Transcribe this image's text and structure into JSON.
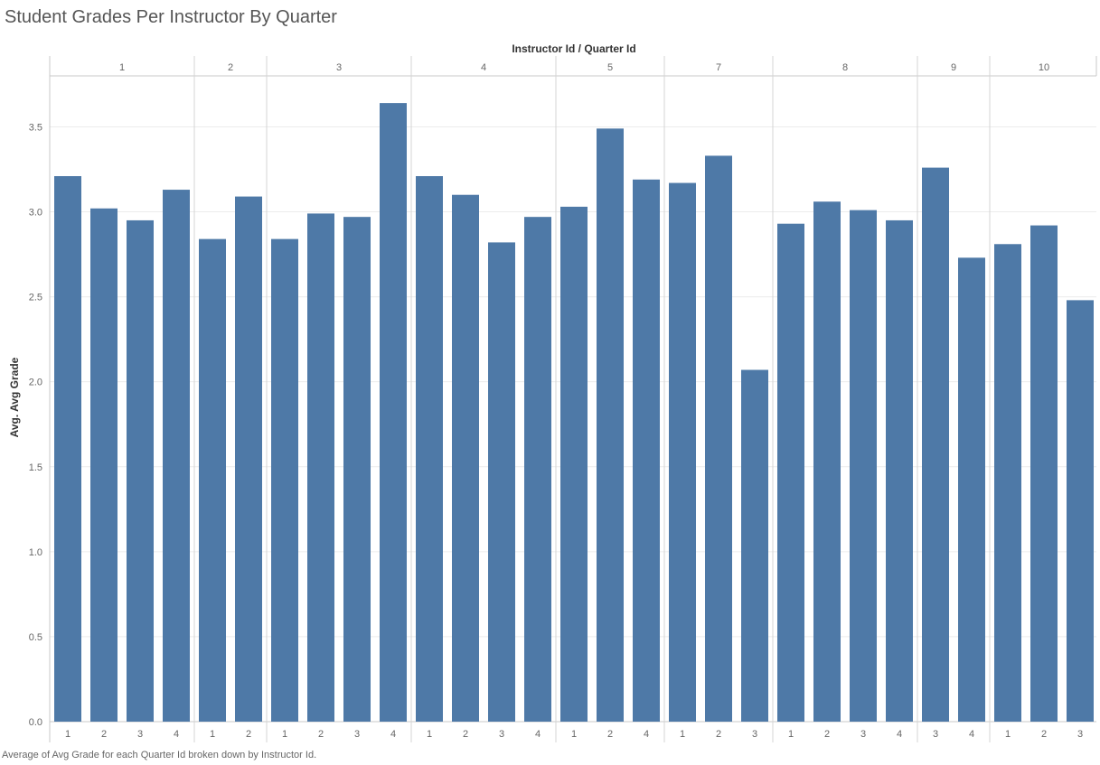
{
  "title": "Student Grades Per Instructor By Quarter",
  "caption": "Average of Avg Grade for each Quarter Id broken down by Instructor Id.",
  "chart_data": {
    "type": "bar",
    "title": "Student Grades Per Instructor By Quarter",
    "xlabel": "Instructor Id / Quarter Id",
    "ylabel": "Avg. Avg Grade",
    "ylim": [
      0,
      3.8
    ],
    "yticks": [
      "0.0",
      "0.5",
      "1.0",
      "1.5",
      "2.0",
      "2.5",
      "3.0",
      "3.5"
    ],
    "grid": true,
    "bar_color": "#4e79a7",
    "groups": [
      {
        "instructor": "1",
        "bars": [
          {
            "quarter": "1",
            "value": 3.21
          },
          {
            "quarter": "2",
            "value": 3.02
          },
          {
            "quarter": "3",
            "value": 2.95
          },
          {
            "quarter": "4",
            "value": 3.13
          }
        ]
      },
      {
        "instructor": "2",
        "bars": [
          {
            "quarter": "1",
            "value": 2.84
          },
          {
            "quarter": "2",
            "value": 3.09
          }
        ]
      },
      {
        "instructor": "3",
        "bars": [
          {
            "quarter": "1",
            "value": 2.84
          },
          {
            "quarter": "2",
            "value": 2.99
          },
          {
            "quarter": "3",
            "value": 2.97
          },
          {
            "quarter": "4",
            "value": 3.64
          }
        ]
      },
      {
        "instructor": "4",
        "bars": [
          {
            "quarter": "1",
            "value": 3.21
          },
          {
            "quarter": "2",
            "value": 3.1
          },
          {
            "quarter": "3",
            "value": 2.82
          },
          {
            "quarter": "4",
            "value": 2.97
          }
        ]
      },
      {
        "instructor": "5",
        "bars": [
          {
            "quarter": "1",
            "value": 3.03
          },
          {
            "quarter": "2",
            "value": 3.49
          },
          {
            "quarter": "4",
            "value": 3.19
          }
        ]
      },
      {
        "instructor": "7",
        "bars": [
          {
            "quarter": "1",
            "value": 3.17
          },
          {
            "quarter": "2",
            "value": 3.33
          },
          {
            "quarter": "3",
            "value": 2.07
          }
        ]
      },
      {
        "instructor": "8",
        "bars": [
          {
            "quarter": "1",
            "value": 2.93
          },
          {
            "quarter": "2",
            "value": 3.06
          },
          {
            "quarter": "3",
            "value": 3.01
          },
          {
            "quarter": "4",
            "value": 2.95
          }
        ]
      },
      {
        "instructor": "9",
        "bars": [
          {
            "quarter": "3",
            "value": 3.26
          },
          {
            "quarter": "4",
            "value": 2.73
          }
        ]
      },
      {
        "instructor": "10",
        "bars": [
          {
            "quarter": "1",
            "value": 2.81
          },
          {
            "quarter": "2",
            "value": 2.92
          },
          {
            "quarter": "3",
            "value": 2.48
          }
        ]
      }
    ]
  }
}
